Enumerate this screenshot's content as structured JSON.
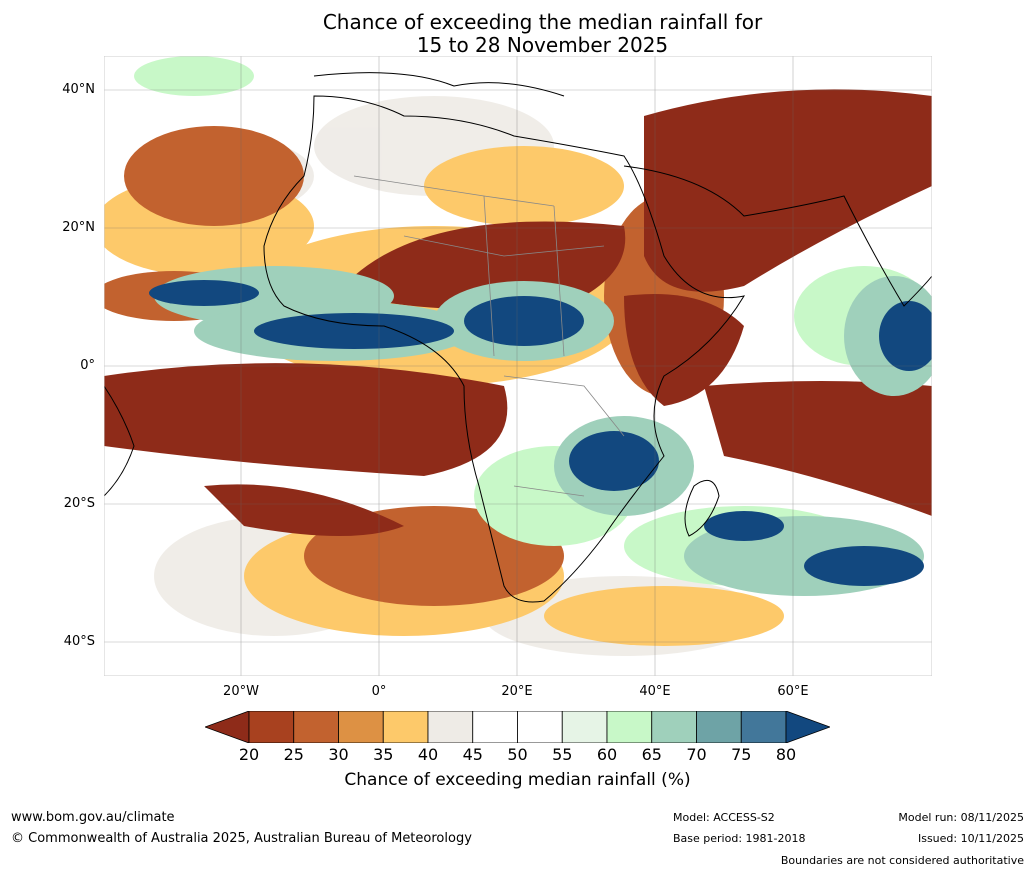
{
  "title": {
    "line1": "Chance of exceeding the median rainfall for",
    "line2": "15 to 28 November 2025"
  },
  "map": {
    "lat_labels": [
      "40°N",
      "20°N",
      "0°",
      "20°S",
      "40°S"
    ],
    "lon_labels": [
      "20°W",
      "0°",
      "20°E",
      "40°E",
      "60°E"
    ]
  },
  "colorbar": {
    "ticks": [
      "20",
      "25",
      "30",
      "35",
      "40",
      "45",
      "50",
      "55",
      "60",
      "65",
      "70",
      "75",
      "80"
    ],
    "colors": [
      "#8e2b19",
      "#a8411f",
      "#c2622f",
      "#dd9144",
      "#fdc96a",
      "#eeebe6",
      "#ffffff",
      "#ffffff",
      "#e6f4e6",
      "#c8f8c8",
      "#9fd0bb",
      "#6ea3a6",
      "#42779a",
      "#12487f"
    ],
    "label": "Chance of exceeding median rainfall (%)"
  },
  "footer": {
    "website": "www.bom.gov.au/climate",
    "copyright": "© Commonwealth of Australia 2025, Australian Bureau of Meteorology",
    "model": "Model: ACCESS-S2",
    "base_period": "Base period: 1981-2018",
    "model_run": "Model run: 08/11/2025",
    "issued": "Issued: 10/11/2025",
    "disclaimer": "Boundaries are not considered authoritative"
  }
}
